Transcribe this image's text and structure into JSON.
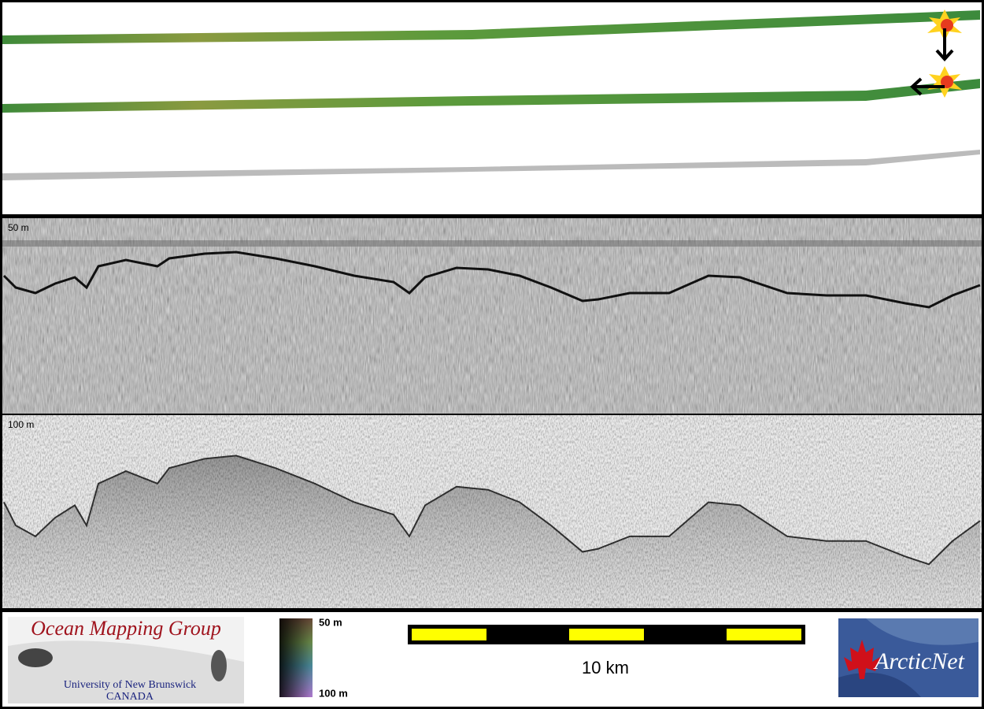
{
  "echogram": {
    "upper_label": "50 m",
    "lower_label": "100 m"
  },
  "legend": {
    "logo": {
      "title": "Ocean Mapping Group",
      "subtitle": "University of New Brunswick",
      "country": "CANADA"
    },
    "colorbar": {
      "top_label": "50 m",
      "bottom_label": "100 m"
    },
    "scale_bar": {
      "label": "10 km"
    },
    "partner_logo": {
      "label": "ArcticNet"
    }
  }
}
